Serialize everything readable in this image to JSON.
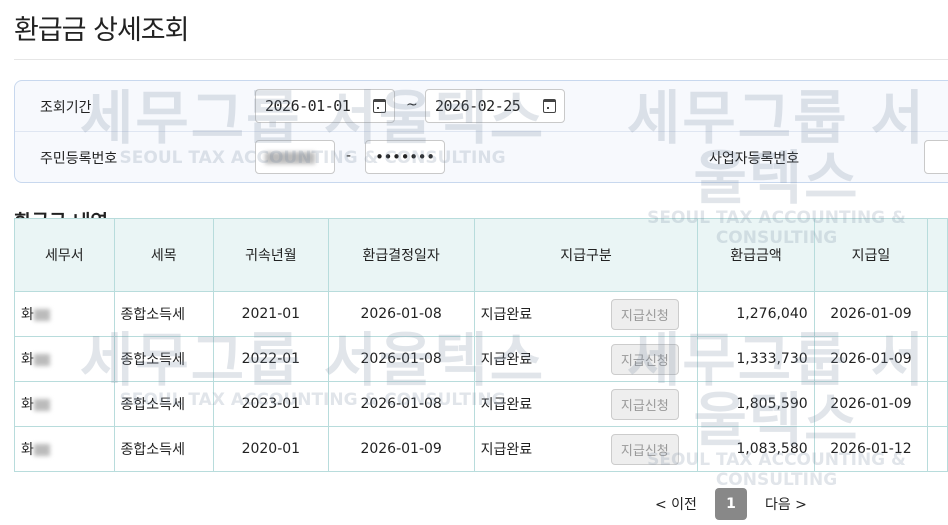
{
  "page_title": "환급금 상세조회",
  "search": {
    "period_label": "조회기간",
    "date_from": "2026-01-01",
    "date_to": "2026-02-25",
    "tilde": "~",
    "rrn_label": "주민등록번호",
    "rrn_back": "•••••••",
    "dash": "-",
    "brn_label": "사업자등록번호"
  },
  "section_title": "환급금 내역",
  "table": {
    "headers": [
      "세무서",
      "세목",
      "귀속년월",
      "환급결정일자",
      "지급구분",
      "환급금액",
      "지급일"
    ],
    "rows": [
      {
        "office": "화",
        "tax": "종합소득세",
        "period": "2021-01",
        "decision": "2026-01-08",
        "status": "지급완료",
        "button": "지급신청",
        "amount": "1,276,040",
        "paid": "2026-01-09"
      },
      {
        "office": "화",
        "tax": "종합소득세",
        "period": "2022-01",
        "decision": "2026-01-08",
        "status": "지급완료",
        "button": "지급신청",
        "amount": "1,333,730",
        "paid": "2026-01-09"
      },
      {
        "office": "화",
        "tax": "종합소득세",
        "period": "2023-01",
        "decision": "2026-01-08",
        "status": "지급완료",
        "button": "지급신청",
        "amount": "1,805,590",
        "paid": "2026-01-09"
      },
      {
        "office": "화",
        "tax": "종합소득세",
        "period": "2020-01",
        "decision": "2026-01-09",
        "status": "지급완료",
        "button": "지급신청",
        "amount": "1,083,580",
        "paid": "2026-01-12"
      }
    ]
  },
  "pagination": {
    "prev": "< 이전",
    "current": "1",
    "next": "다음 >"
  },
  "watermark": {
    "main": "세무그룹 서울텍스",
    "sub": "SEOUL TAX ACCOUNTING & CONSULTING"
  }
}
